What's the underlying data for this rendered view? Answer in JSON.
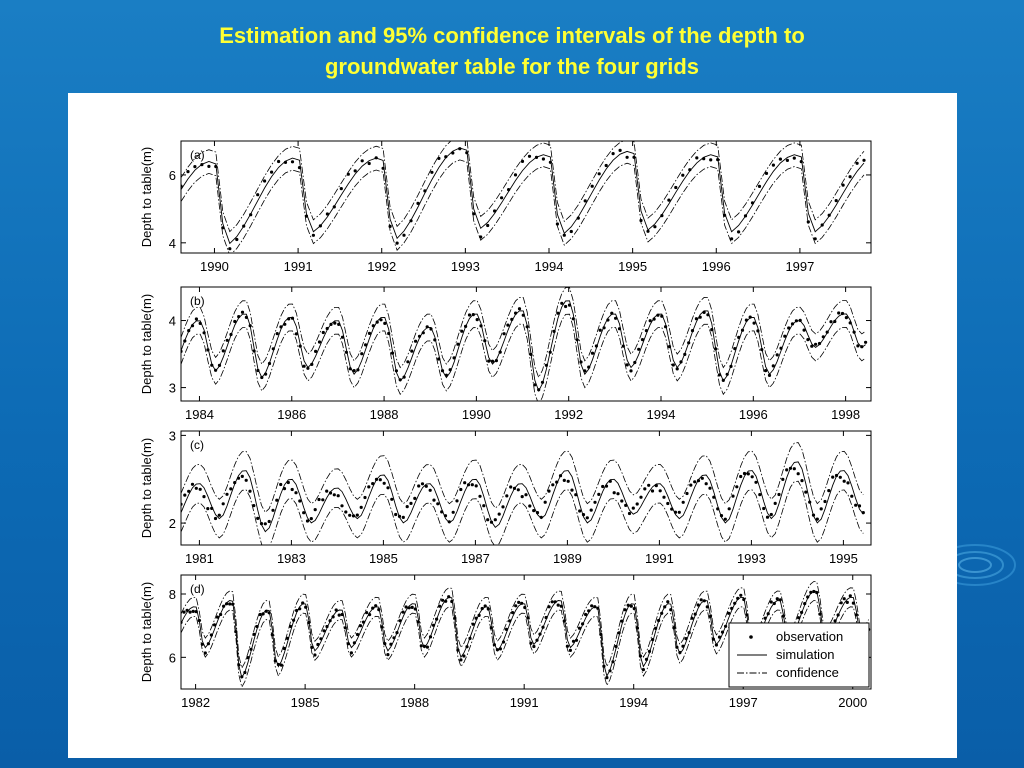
{
  "slide": {
    "title_line1": "Estimation and 95% confidence intervals of the depth to",
    "title_line2": "groundwater table for the four grids",
    "title_color": "#ffff33",
    "background_color": "#1476bd"
  },
  "legend": {
    "observation": "observation",
    "simulation": "simulation",
    "confidence": "confidence"
  },
  "chart_data": [
    {
      "type": "line",
      "panel_label": "(a)",
      "ylabel": "Depth to table(m)",
      "xlim": [
        1989.6,
        1997.85
      ],
      "ylim": [
        3.7,
        7.0
      ],
      "xticks": [
        1990,
        1991,
        1992,
        1993,
        1994,
        1995,
        1996,
        1997
      ],
      "xtick_labels": [
        "1990",
        "1991",
        "1992",
        "1993",
        "1994",
        "1995",
        "1996",
        "1997"
      ],
      "yticks": [
        4,
        6
      ],
      "ytick_labels": [
        "4",
        "6"
      ],
      "grid": false,
      "legend": false,
      "series_style": {
        "observation": "dots",
        "simulation": "solid",
        "confidence": "dash-dot"
      },
      "timesteps_per_year": 12,
      "x_start": 1989.6,
      "n_points": 99,
      "dip_month_fraction": 0.15,
      "min_values": [
        4.0,
        3.95,
        4.3,
        4.1,
        4.4,
        4.25,
        4.35,
        4.3,
        4.3
      ],
      "max_values": [
        6.4,
        6.5,
        6.5,
        6.8,
        6.6,
        6.7,
        6.6,
        6.6
      ],
      "confidence_halfwidth": 0.35,
      "sim_offset": 0.18,
      "obs_noise": 0.12
    },
    {
      "type": "line",
      "panel_label": "(b)",
      "ylabel": "Depth to table(m)",
      "xlim": [
        1983.6,
        1998.55
      ],
      "ylim": [
        2.8,
        4.5
      ],
      "xticks": [
        1984,
        1986,
        1988,
        1990,
        1992,
        1994,
        1996,
        1998
      ],
      "xtick_labels": [
        "1984",
        "1986",
        "1988",
        "1990",
        "1992",
        "1994",
        "1996",
        "1998"
      ],
      "yticks": [
        3,
        4
      ],
      "ytick_labels": [
        "3",
        "4"
      ],
      "grid": false,
      "legend": false,
      "series_style": {
        "observation": "dots",
        "simulation": "solid",
        "confidence": "dash-dot"
      },
      "timesteps_per_year": 12,
      "x_start": 1983.6,
      "n_points": 179,
      "dip_month_fraction": 0.35,
      "min_values": [
        3.2,
        3.25,
        3.15,
        3.3,
        3.2,
        3.1,
        3.15,
        3.35,
        2.95,
        3.2,
        3.3,
        3.3,
        3.1,
        3.2,
        3.6
      ],
      "max_values": [
        4.0,
        4.1,
        4.05,
        4.0,
        4.05,
        3.9,
        4.1,
        4.15,
        4.3,
        4.1,
        4.1,
        4.15,
        4.05,
        4.0,
        4.1
      ],
      "confidence_halfwidth": 0.2,
      "sim_offset": 0.05,
      "obs_noise": 0.06
    },
    {
      "type": "line",
      "panel_label": "(c)",
      "ylabel": "Depth to table(m)",
      "xlim": [
        1980.6,
        1995.6
      ],
      "ylim": [
        1.75,
        3.05
      ],
      "xticks": [
        1981,
        1983,
        1985,
        1987,
        1989,
        1991,
        1993,
        1995
      ],
      "xtick_labels": [
        "1981",
        "1983",
        "1985",
        "1987",
        "1989",
        "1991",
        "1993",
        "1995"
      ],
      "yticks": [
        2,
        3
      ],
      "ytick_labels": [
        "2",
        "3"
      ],
      "grid": false,
      "legend": false,
      "series_style": {
        "observation": "dots",
        "simulation": "solid",
        "confidence": "dash-dot"
      },
      "timesteps_per_year": 12,
      "x_start": 1980.6,
      "n_points": 179,
      "dip_month_fraction": 0.45,
      "min_values": [
        2.0,
        2.05,
        1.9,
        2.0,
        2.05,
        2.0,
        2.0,
        1.95,
        2.05,
        2.0,
        2.1,
        2.05,
        2.0,
        2.05,
        2.0,
        2.1
      ],
      "max_values": [
        2.45,
        2.6,
        2.5,
        2.4,
        2.55,
        2.45,
        2.5,
        2.45,
        2.6,
        2.5,
        2.45,
        2.55,
        2.6,
        2.7,
        2.6
      ],
      "confidence_halfwidth": 0.22,
      "sim_offset": 0.12,
      "obs_noise": 0.05
    },
    {
      "type": "line",
      "panel_label": "(d)",
      "ylabel": "Depth to table(m)",
      "xlim": [
        1981.6,
        2000.5
      ],
      "ylim": [
        5.0,
        8.6
      ],
      "xticks": [
        1982,
        1985,
        1988,
        1991,
        1994,
        1997,
        2000
      ],
      "xtick_labels": [
        "1982",
        "1985",
        "1988",
        "1991",
        "1994",
        "1997",
        "2000"
      ],
      "yticks": [
        6,
        8
      ],
      "ytick_labels": [
        "6",
        "8"
      ],
      "grid": false,
      "legend": true,
      "legend_position": "bottom-right",
      "series_style": {
        "observation": "dots",
        "simulation": "solid",
        "confidence": "dash-dot"
      },
      "timesteps_per_year": 12,
      "x_start": 1981.6,
      "n_points": 227,
      "dip_month_fraction": 0.25,
      "min_values": [
        6.4,
        6.3,
        5.35,
        5.7,
        6.2,
        6.3,
        6.2,
        6.3,
        6.0,
        6.2,
        6.4,
        6.3,
        5.4,
        5.7,
        6.1,
        6.4,
        6.3,
        6.5,
        6.6,
        6.6
      ],
      "max_values": [
        7.6,
        7.8,
        7.5,
        7.7,
        7.5,
        7.6,
        7.7,
        7.9,
        7.6,
        7.7,
        7.8,
        7.6,
        7.7,
        7.7,
        7.8,
        7.9,
        7.8,
        8.1,
        7.9
      ],
      "confidence_halfwidth": 0.3,
      "sim_offset": 0.1,
      "obs_noise": 0.12
    }
  ]
}
